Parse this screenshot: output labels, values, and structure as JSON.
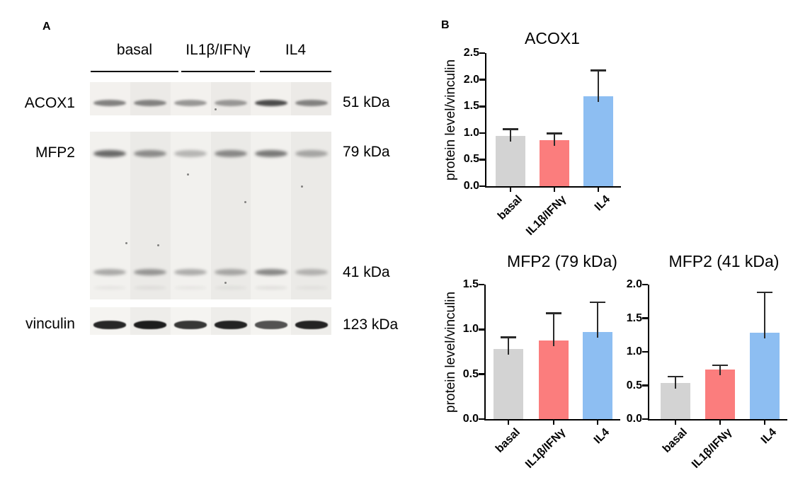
{
  "panelA": {
    "label": "A",
    "group_headers": [
      "basal",
      "IL1β/IFNγ",
      "IL4"
    ],
    "lanes_per_group": 2,
    "blots": [
      {
        "protein_label": "ACOX1",
        "band_rows": [
          {
            "mw_label": "51 kDa",
            "lane_intensities": [
              0.62,
              0.6,
              0.5,
              0.48,
              0.92,
              0.6
            ]
          }
        ]
      },
      {
        "protein_label": "MFP2",
        "band_rows": [
          {
            "mw_label": "79 kDa",
            "lane_intensities": [
              0.8,
              0.58,
              0.35,
              0.6,
              0.7,
              0.42
            ]
          },
          {
            "mw_label": "41 kDa",
            "lane_intensities": [
              0.42,
              0.52,
              0.4,
              0.42,
              0.62,
              0.35
            ]
          }
        ]
      },
      {
        "protein_label": "vinculin",
        "band_rows": [
          {
            "mw_label": "123 kDa",
            "lane_intensities": [
              0.95,
              1.0,
              0.88,
              0.97,
              0.75,
              0.97
            ]
          }
        ]
      }
    ]
  },
  "panelB": {
    "label": "B"
  },
  "chart_data": [
    {
      "type": "bar",
      "title": "ACOX1",
      "ylabel": "protein level/vinculin",
      "xlabel": "",
      "categories": [
        "basal",
        "IL1β/IFNγ",
        "IL4"
      ],
      "values": [
        0.95,
        0.86,
        1.69
      ],
      "errors_up": [
        0.12,
        0.13,
        0.48
      ],
      "ylim": [
        0,
        2.5
      ],
      "ytick_step": 0.5,
      "ytick_labels": [
        "0.0",
        "0.5",
        "1.0",
        "1.5",
        "2.0",
        "2.5"
      ],
      "bar_colors": [
        "#d3d3d3",
        "#fb7d7d",
        "#8dbef2"
      ],
      "grid": false,
      "legend": "none"
    },
    {
      "type": "bar",
      "title": "MFP2 (79 kDa)",
      "ylabel": "protein level/vinculin",
      "xlabel": "",
      "categories": [
        "basal",
        "IL1β/IFNγ",
        "IL4"
      ],
      "values": [
        0.78,
        0.88,
        0.97
      ],
      "errors_up": [
        0.13,
        0.3,
        0.33
      ],
      "ylim": [
        0,
        1.5
      ],
      "ytick_step": 0.5,
      "ytick_labels": [
        "0.0",
        "0.5",
        "1.0",
        "1.5"
      ],
      "bar_colors": [
        "#d3d3d3",
        "#fb7d7d",
        "#8dbef2"
      ],
      "grid": false,
      "legend": "none"
    },
    {
      "type": "bar",
      "title": "MFP2 (41 kDa)",
      "ylabel": "",
      "xlabel": "",
      "categories": [
        "basal",
        "IL1β/IFNγ",
        "IL4"
      ],
      "values": [
        0.54,
        0.74,
        1.28
      ],
      "errors_up": [
        0.09,
        0.06,
        0.6
      ],
      "ylim": [
        0,
        2.0
      ],
      "ytick_step": 0.5,
      "ytick_labels": [
        "0.0",
        "0.5",
        "1.0",
        "1.5",
        "2.0"
      ],
      "bar_colors": [
        "#d3d3d3",
        "#fb7d7d",
        "#8dbef2"
      ],
      "grid": false,
      "legend": "none"
    }
  ]
}
